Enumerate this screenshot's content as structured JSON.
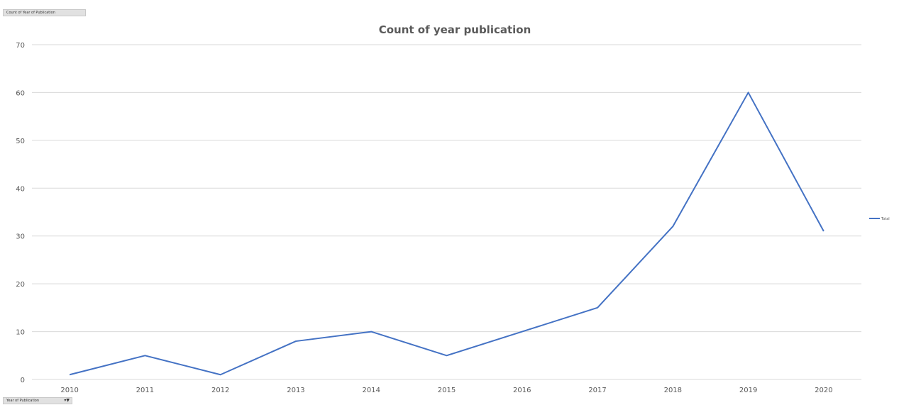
{
  "pivot": {
    "value_field": "Count of Year of Publication",
    "axis_field": "Year of Publication",
    "filter_icon": "dropdown-filter-icon"
  },
  "colors": {
    "line": "#4472c4",
    "grid": "#d9d9d9",
    "text": "#595959"
  },
  "chart_data": {
    "type": "line",
    "title": "Count of year publication",
    "xlabel": "",
    "ylabel": "",
    "categories": [
      "2010",
      "2011",
      "2012",
      "2013",
      "2014",
      "2015",
      "2016",
      "2017",
      "2018",
      "2019",
      "2020"
    ],
    "series": [
      {
        "name": "Total",
        "values": [
          1,
          5,
          1,
          8,
          10,
          5,
          10,
          15,
          32,
          60,
          31
        ]
      }
    ],
    "ylim": [
      0,
      70
    ],
    "yticks": [
      0,
      10,
      20,
      30,
      40,
      50,
      60,
      70
    ],
    "grid": true,
    "legend": "right"
  }
}
